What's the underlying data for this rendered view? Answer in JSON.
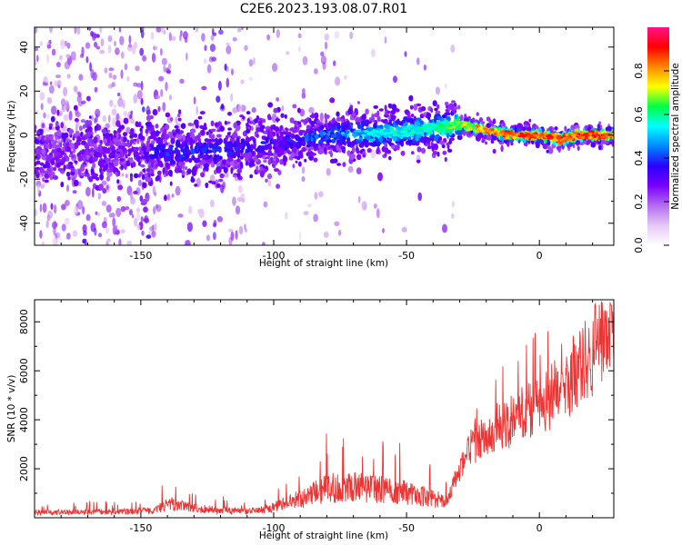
{
  "figure": {
    "title": "C2E6.2023.193.08.07.R01"
  },
  "chart_data": [
    {
      "type": "heatmap",
      "xlabel": "Height of straight line (km)",
      "ylabel": "Frequency (Hz)",
      "xlim": [
        -190,
        28
      ],
      "ylim": [
        -50,
        49
      ],
      "x_ticks": [
        -150,
        -100,
        -50,
        0
      ],
      "y_ticks": [
        -40,
        -20,
        0,
        20,
        40
      ],
      "colorbar": {
        "label": "Normalized spectral amplitude",
        "range": [
          0,
          1
        ],
        "ticks": [
          "0.0",
          "0.2",
          "0.4",
          "0.6",
          "0.8"
        ],
        "colormap": [
          "#ffffff",
          "#e6c8f5",
          "#b36cf0",
          "#7a00ff",
          "#2a00ff",
          "#0088ff",
          "#00ffff",
          "#00ff44",
          "#ffff00",
          "#ff8800",
          "#ff0000",
          "#ff1188"
        ]
      },
      "ridge_center_freq": [
        {
          "x": -190,
          "y": -8
        },
        {
          "x": -150,
          "y": -8
        },
        {
          "x": -120,
          "y": -7
        },
        {
          "x": -100,
          "y": -4
        },
        {
          "x": -80,
          "y": 0
        },
        {
          "x": -60,
          "y": 1
        },
        {
          "x": -40,
          "y": 3
        },
        {
          "x": -30,
          "y": 5
        },
        {
          "x": -20,
          "y": 2
        },
        {
          "x": -10,
          "y": 0
        },
        {
          "x": 0,
          "y": 0
        },
        {
          "x": 8,
          "y": -2
        },
        {
          "x": 15,
          "y": 0
        },
        {
          "x": 28,
          "y": 0
        }
      ],
      "ridge_peak_amplitude": [
        {
          "x": -190,
          "y": 0.25
        },
        {
          "x": -150,
          "y": 0.3
        },
        {
          "x": -140,
          "y": 0.4
        },
        {
          "x": -100,
          "y": 0.35
        },
        {
          "x": -80,
          "y": 0.45
        },
        {
          "x": -60,
          "y": 0.55
        },
        {
          "x": -40,
          "y": 0.6
        },
        {
          "x": -30,
          "y": 0.7
        },
        {
          "x": -20,
          "y": 0.85
        },
        {
          "x": 0,
          "y": 0.9
        },
        {
          "x": 28,
          "y": 0.9
        }
      ]
    },
    {
      "type": "line",
      "xlabel": "Height of straight line (km)",
      "ylabel": "SNR (10 * v/v)",
      "xlim": [
        -190,
        28
      ],
      "ylim": [
        0,
        8900
      ],
      "x_ticks": [
        -150,
        -100,
        -50,
        0
      ],
      "y_ticks": [
        2000,
        4000,
        6000,
        8000
      ],
      "line_color": "#ee3333",
      "series": [
        {
          "trend_points": [
            {
              "x": -190,
              "y": 200
            },
            {
              "x": -160,
              "y": 220
            },
            {
              "x": -145,
              "y": 260
            },
            {
              "x": -140,
              "y": 550
            },
            {
              "x": -130,
              "y": 350
            },
            {
              "x": -110,
              "y": 220
            },
            {
              "x": -100,
              "y": 400
            },
            {
              "x": -90,
              "y": 700
            },
            {
              "x": -80,
              "y": 1100
            },
            {
              "x": -70,
              "y": 1150
            },
            {
              "x": -60,
              "y": 1050
            },
            {
              "x": -50,
              "y": 950
            },
            {
              "x": -40,
              "y": 700
            },
            {
              "x": -35,
              "y": 650
            },
            {
              "x": -30,
              "y": 2000
            },
            {
              "x": -25,
              "y": 3000
            },
            {
              "x": -20,
              "y": 3500
            },
            {
              "x": -10,
              "y": 4000
            },
            {
              "x": 0,
              "y": 4600
            },
            {
              "x": 10,
              "y": 5500
            },
            {
              "x": 20,
              "y": 6800
            },
            {
              "x": 28,
              "y": 7800
            }
          ]
        }
      ]
    }
  ]
}
